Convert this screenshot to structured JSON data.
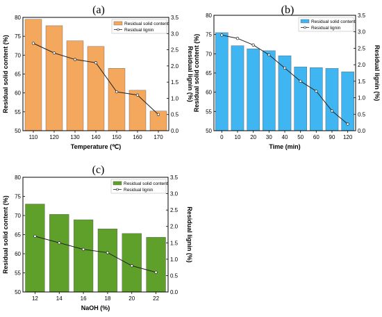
{
  "chart_data": [
    {
      "panel": "(a)",
      "type": "bar+line",
      "xlabel": "Temperature (℃)",
      "ylabel_left": "Residual solid content (%)",
      "ylabel_right": "Residual lignin (%)",
      "categories": [
        "110",
        "120",
        "130",
        "140",
        "150",
        "160",
        "170"
      ],
      "ylim_left": [
        50,
        80
      ],
      "ylim_right": [
        0,
        3.5
      ],
      "yticks_left": [
        "50",
        "55",
        "60",
        "65",
        "70",
        "75",
        "80"
      ],
      "yticks_right": [
        "0.0",
        "0.5",
        "1.0",
        "1.5",
        "2.0",
        "2.5",
        "3.0",
        "3.5"
      ],
      "series": [
        {
          "name": "Residual solid content",
          "type": "bar",
          "axis": "left",
          "color": "#f4a85e",
          "values": [
            79.5,
            77.8,
            73.8,
            72.3,
            66.5,
            60.7,
            55.2
          ]
        },
        {
          "name": "Residual lignin",
          "type": "line",
          "axis": "right",
          "color": "#222222",
          "values": [
            2.7,
            2.4,
            2.2,
            2.1,
            1.2,
            1.1,
            0.5
          ]
        }
      ],
      "legend": "top-right"
    },
    {
      "panel": "(b)",
      "type": "bar+line",
      "xlabel": "Time (min)",
      "ylabel_left": "Residual solid content (%)",
      "ylabel_right": "Residual lignin (%)",
      "categories": [
        "0",
        "10",
        "20",
        "30",
        "40",
        "50",
        "60",
        "90",
        "120"
      ],
      "ylim_left": [
        50,
        80
      ],
      "ylim_right": [
        0,
        3.5
      ],
      "yticks_left": [
        "50",
        "55",
        "60",
        "65",
        "70",
        "75",
        "80"
      ],
      "yticks_right": [
        "0.0",
        "0.5",
        "1.0",
        "1.5",
        "2.0",
        "2.5",
        "3.0",
        "3.5"
      ],
      "series": [
        {
          "name": "Residual solid content",
          "type": "bar",
          "axis": "left",
          "color": "#3fb6f2",
          "values": [
            75.5,
            72.1,
            71.3,
            70.8,
            69.5,
            66.6,
            66.4,
            66.2,
            65.3
          ]
        },
        {
          "name": "Residual lignin",
          "type": "line",
          "axis": "right",
          "color": "#222222",
          "values": [
            2.9,
            2.8,
            2.6,
            2.3,
            1.9,
            1.5,
            1.2,
            0.6,
            0.2
          ]
        }
      ],
      "legend": "top-right"
    },
    {
      "panel": "(c)",
      "type": "bar+line",
      "xlabel": "NaOH (%)",
      "ylabel_left": "Residual solid content (%)",
      "ylabel_right": "Residual lignin (%)",
      "categories": [
        "12",
        "14",
        "16",
        "18",
        "20",
        "22"
      ],
      "ylim_left": [
        50,
        80
      ],
      "ylim_right": [
        0,
        3.5
      ],
      "yticks_left": [
        "50",
        "55",
        "60",
        "65",
        "70",
        "75",
        "80"
      ],
      "yticks_right": [
        "0.0",
        "0.5",
        "1.0",
        "1.5",
        "2.0",
        "2.5",
        "3.0",
        "3.5"
      ],
      "series": [
        {
          "name": "Residual solid content",
          "type": "bar",
          "axis": "left",
          "color": "#5fa02a",
          "values": [
            73.0,
            70.3,
            68.9,
            66.5,
            65.3,
            64.3
          ]
        },
        {
          "name": "Residual lignin",
          "type": "line",
          "axis": "right",
          "color": "#222222",
          "values": [
            1.7,
            1.5,
            1.3,
            1.2,
            0.8,
            0.6
          ]
        }
      ],
      "legend": "top-right"
    }
  ]
}
